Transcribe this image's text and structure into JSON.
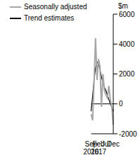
{
  "chart_data": {
    "type": "line",
    "y_label": "$m",
    "categories": [
      "Sep 2016",
      null,
      null,
      null,
      null,
      "Feb 2017",
      null,
      null,
      null,
      null,
      "Jul",
      null,
      null,
      null,
      null,
      "Dec"
    ],
    "series": [
      {
        "name": "Trend estimates",
        "color": "#000000",
        "line_style": "solid",
        "values": [
          -500,
          500,
          1600,
          2400,
          2800,
          2700,
          2300,
          1800,
          1400,
          1100,
          900,
          600,
          300,
          0,
          -200,
          -500
        ]
      },
      {
        "name": "Seasonally adjusted",
        "color": "#a6a6a6",
        "line_style": "solid",
        "values": [
          -700,
          -1100,
          1500,
          4400,
          1600,
          3000,
          2500,
          -200,
          2000,
          900,
          600,
          400,
          1200,
          300,
          -200,
          -1400
        ]
      }
    ],
    "ylim": [
      -2000,
      6000
    ],
    "yticks": [
      -2000,
      0,
      2000,
      4000,
      6000
    ],
    "legend": "upper left",
    "grid": false
  }
}
